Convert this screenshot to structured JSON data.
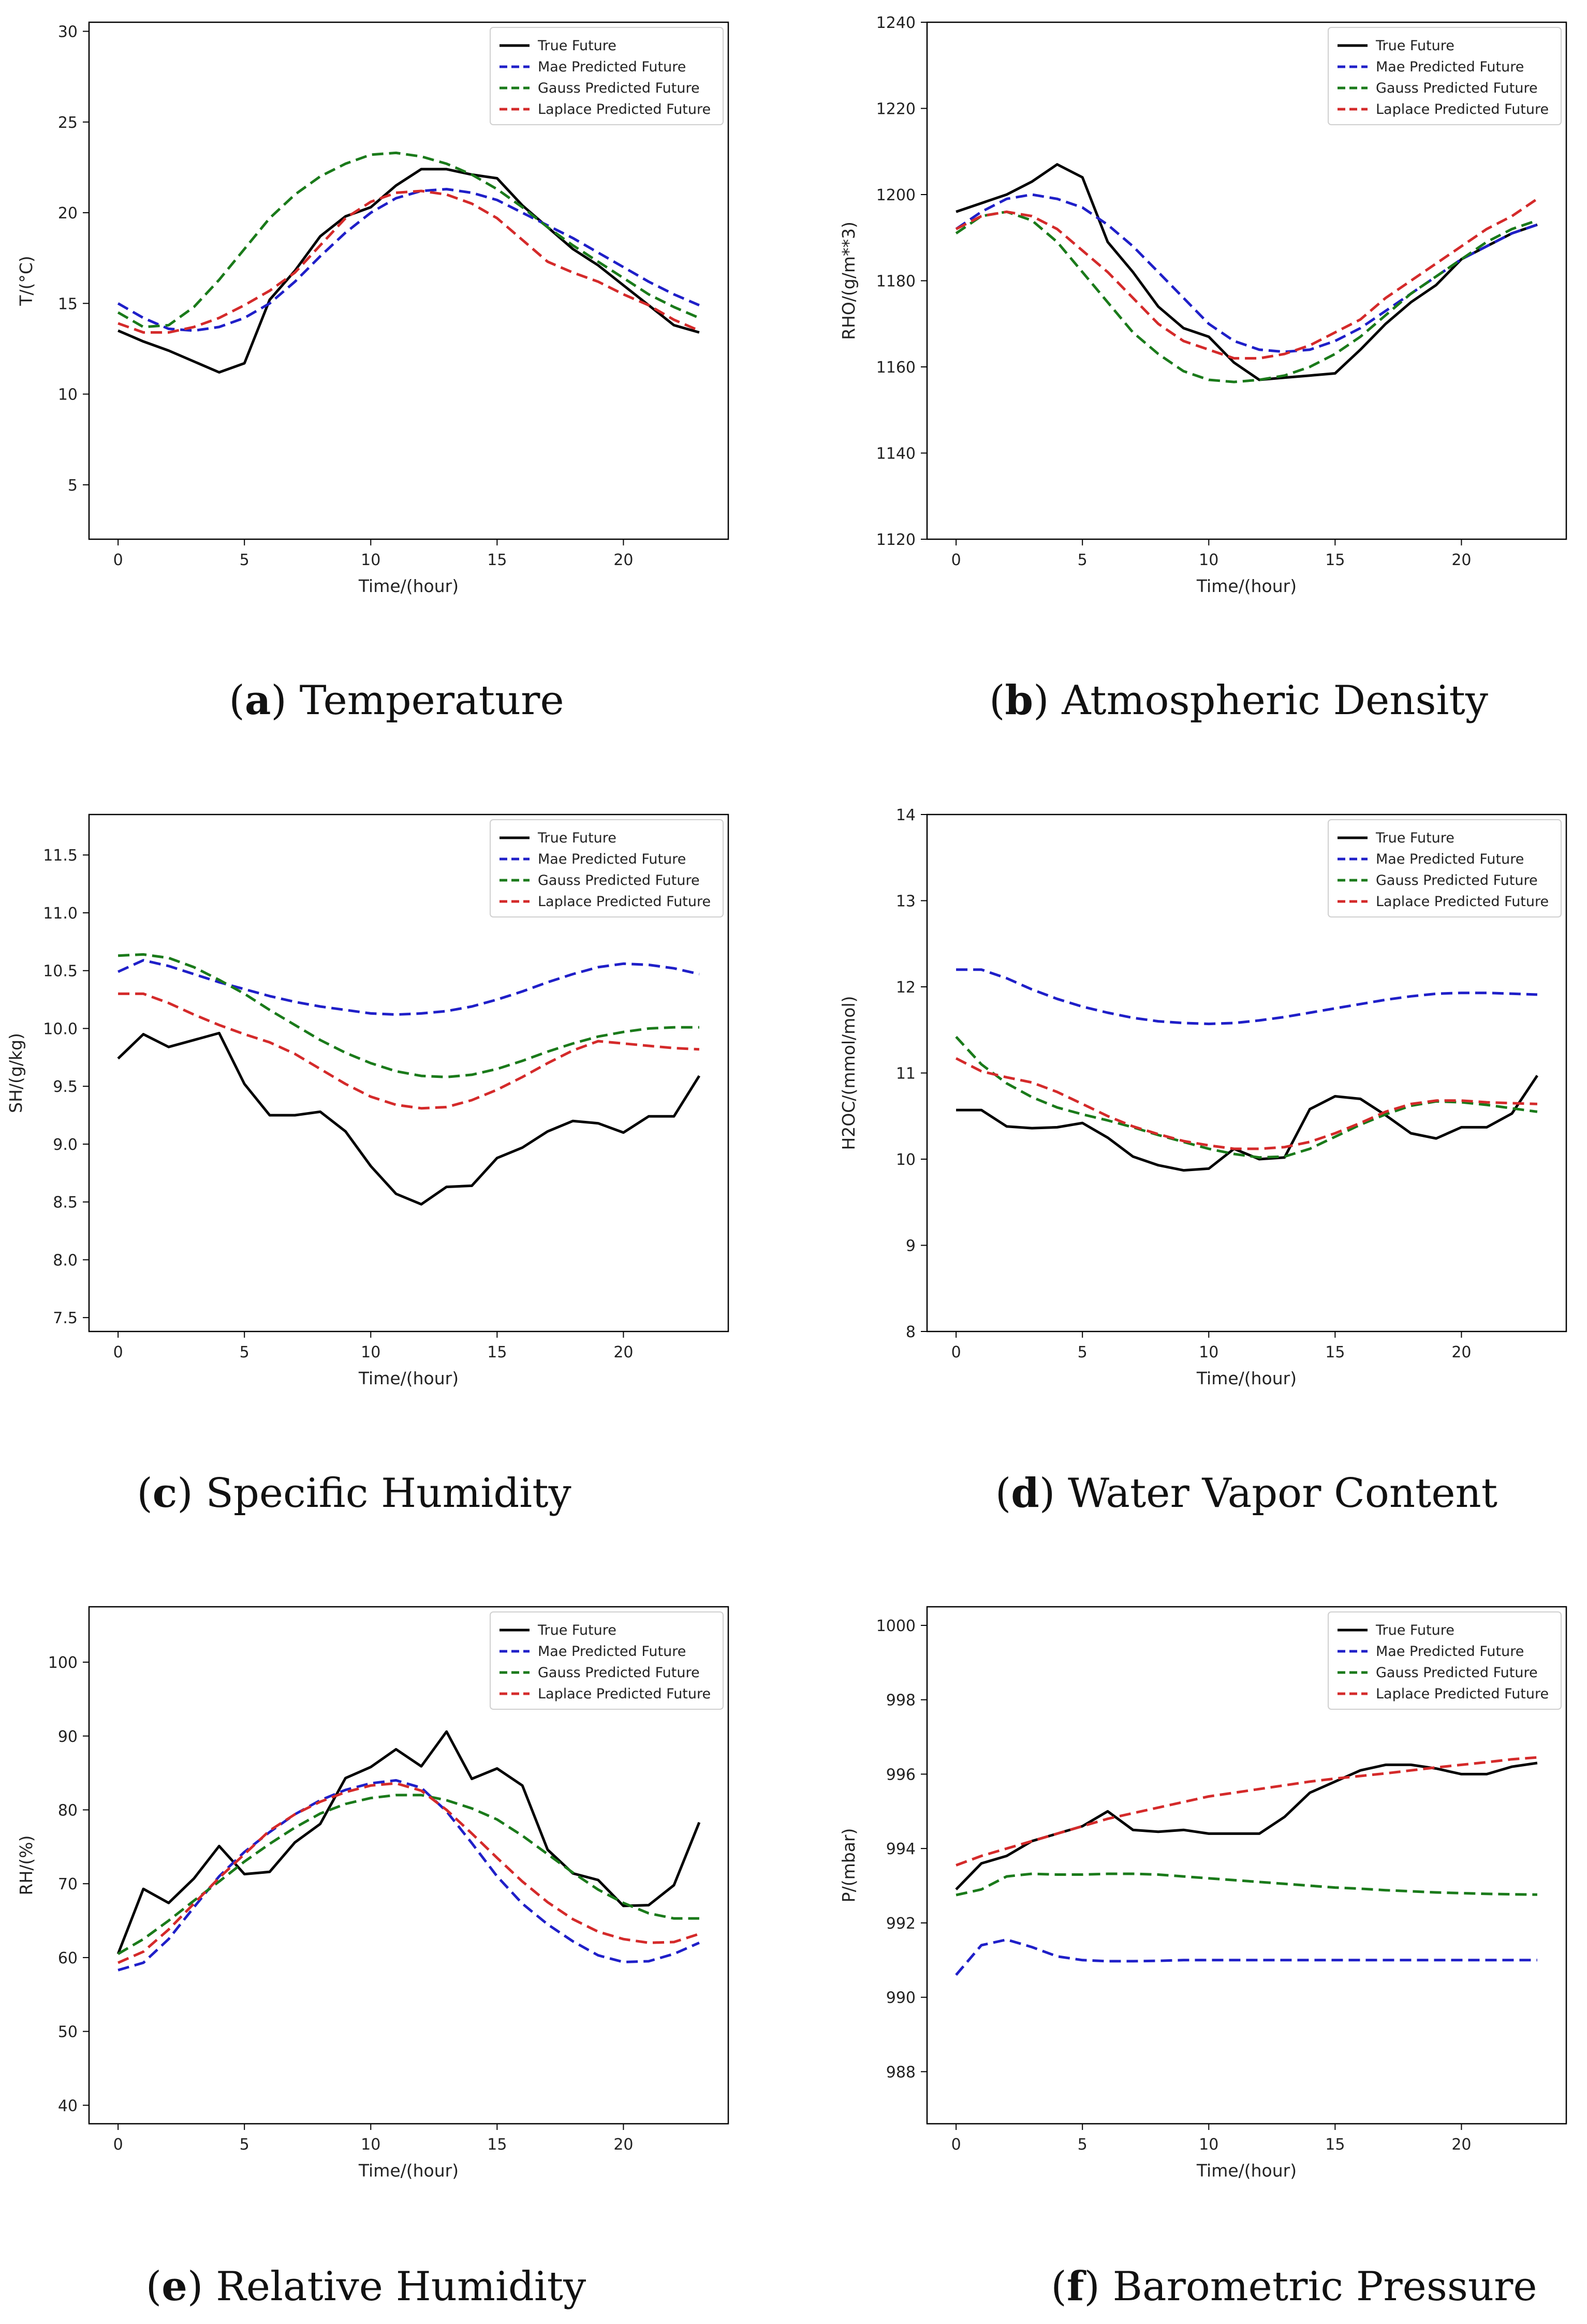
{
  "legend_labels": [
    "True Future",
    "Mae Predicted Future",
    "Gauss Predicted Future",
    "Laplace Predicted Future"
  ],
  "series_colors": [
    "#000000",
    "#1f1fc8",
    "#1a7a1a",
    "#d42a2a"
  ],
  "xlabel": "Time/(hour)",
  "chart_data": [
    {
      "type": "line",
      "panel": "a",
      "caption_letter": "a",
      "caption_text": "Temperature",
      "ylabel": "T/(°C)",
      "xlabel": "Time/(hour)",
      "xlim": [
        -1.15,
        24.15
      ],
      "ylim": [
        2,
        30.5
      ],
      "xticks": [
        0,
        5,
        10,
        15,
        20
      ],
      "yticks": [
        5,
        10,
        15,
        20,
        25,
        30
      ],
      "x": [
        0,
        1,
        2,
        3,
        4,
        5,
        6,
        7,
        8,
        9,
        10,
        11,
        12,
        13,
        14,
        15,
        16,
        17,
        18,
        19,
        20,
        21,
        22,
        23
      ],
      "series": [
        {
          "name": "True Future",
          "values": [
            13.5,
            12.9,
            12.4,
            11.8,
            11.2,
            11.7,
            15.2,
            16.8,
            18.7,
            19.8,
            20.3,
            21.5,
            22.4,
            22.4,
            22.1,
            21.9,
            20.4,
            19.2,
            18.0,
            17.1,
            16.0,
            14.9,
            13.8,
            13.4
          ]
        },
        {
          "name": "Mae Predicted Future",
          "values": [
            15.0,
            14.2,
            13.6,
            13.5,
            13.7,
            14.2,
            15.0,
            16.2,
            17.6,
            18.9,
            20.0,
            20.8,
            21.2,
            21.3,
            21.1,
            20.7,
            20.0,
            19.3,
            18.6,
            17.8,
            17.0,
            16.2,
            15.5,
            14.9
          ]
        },
        {
          "name": "Gauss Predicted Future",
          "values": [
            14.5,
            13.7,
            13.8,
            14.8,
            16.3,
            18.0,
            19.7,
            21.0,
            22.0,
            22.7,
            23.2,
            23.3,
            23.1,
            22.7,
            22.1,
            21.3,
            20.3,
            19.2,
            18.2,
            17.3,
            16.4,
            15.5,
            14.8,
            14.2
          ]
        },
        {
          "name": "Laplace Predicted Future",
          "values": [
            13.9,
            13.4,
            13.4,
            13.7,
            14.2,
            14.9,
            15.7,
            16.7,
            18.2,
            19.7,
            20.6,
            21.1,
            21.2,
            21.0,
            20.5,
            19.7,
            18.5,
            17.3,
            16.7,
            16.2,
            15.5,
            14.9,
            14.1,
            13.5
          ]
        }
      ]
    },
    {
      "type": "line",
      "panel": "b",
      "caption_letter": "b",
      "caption_text": "Atmospheric Density",
      "ylabel": "RHO/(g/m**3)",
      "xlabel": "Time/(hour)",
      "xlim": [
        -1.15,
        24.15
      ],
      "ylim": [
        1120,
        1240
      ],
      "xticks": [
        0,
        5,
        10,
        15,
        20
      ],
      "yticks": [
        1120,
        1140,
        1160,
        1180,
        1200,
        1220,
        1240
      ],
      "x": [
        0,
        1,
        2,
        3,
        4,
        5,
        6,
        7,
        8,
        9,
        10,
        11,
        12,
        13,
        14,
        15,
        16,
        17,
        18,
        19,
        20,
        21,
        22,
        23
      ],
      "series": [
        {
          "name": "True Future",
          "values": [
            1196,
            1198,
            1200,
            1203,
            1207,
            1204,
            1189,
            1182,
            1174,
            1169,
            1167,
            1161,
            1157,
            1157.5,
            1158,
            1158.5,
            1164,
            1170,
            1175,
            1179,
            1185,
            1188,
            1191,
            1193
          ]
        },
        {
          "name": "Mae Predicted Future",
          "values": [
            1192,
            1196,
            1199,
            1200,
            1199,
            1197,
            1193,
            1188,
            1182,
            1176,
            1170,
            1166,
            1164,
            1163.5,
            1164,
            1166,
            1169,
            1173,
            1177,
            1181,
            1185,
            1188,
            1191,
            1193
          ]
        },
        {
          "name": "Gauss Predicted Future",
          "values": [
            1191,
            1195,
            1196,
            1194,
            1189,
            1182,
            1175,
            1168,
            1163,
            1159,
            1157,
            1156.5,
            1157,
            1158,
            1160,
            1163,
            1167,
            1172,
            1177,
            1181,
            1185,
            1189,
            1192,
            1194
          ]
        },
        {
          "name": "Laplace Predicted Future",
          "values": [
            1192,
            1195,
            1196,
            1195,
            1192,
            1187,
            1182,
            1176,
            1170,
            1166,
            1164,
            1162,
            1162,
            1163,
            1165,
            1168,
            1171,
            1176,
            1180,
            1184,
            1188,
            1192,
            1195,
            1199
          ]
        }
      ]
    },
    {
      "type": "line",
      "panel": "c",
      "caption_letter": "c",
      "caption_text": "Specific Humidity",
      "ylabel": "SH/(g/kg)",
      "xlabel": "Time/(hour)",
      "xlim": [
        -1.15,
        24.15
      ],
      "ylim": [
        7.38,
        11.85
      ],
      "xticks": [
        0,
        5,
        10,
        15,
        20
      ],
      "yticks": [
        7.5,
        8.0,
        8.5,
        9.0,
        9.5,
        10.0,
        10.5,
        11.0,
        11.5
      ],
      "ytick_labels": [
        "7.5",
        "8.0",
        "8.5",
        "9.0",
        "9.5",
        "10.0",
        "10.5",
        "11.0",
        "11.5"
      ],
      "x": [
        0,
        1,
        2,
        3,
        4,
        5,
        6,
        7,
        8,
        9,
        10,
        11,
        12,
        13,
        14,
        15,
        16,
        17,
        18,
        19,
        20,
        21,
        22,
        23
      ],
      "series": [
        {
          "name": "True Future",
          "values": [
            9.74,
            9.95,
            9.84,
            9.9,
            9.96,
            9.52,
            9.25,
            9.25,
            9.28,
            9.11,
            8.81,
            8.57,
            8.48,
            8.63,
            8.64,
            8.88,
            8.97,
            9.11,
            9.2,
            9.18,
            9.1,
            9.24,
            9.24,
            9.59
          ]
        },
        {
          "name": "Mae Predicted Future",
          "values": [
            10.49,
            10.59,
            10.54,
            10.47,
            10.4,
            10.34,
            10.28,
            10.23,
            10.19,
            10.16,
            10.13,
            10.12,
            10.13,
            10.15,
            10.19,
            10.25,
            10.32,
            10.4,
            10.47,
            10.53,
            10.56,
            10.55,
            10.52,
            10.47
          ]
        },
        {
          "name": "Gauss Predicted Future",
          "values": [
            10.63,
            10.64,
            10.61,
            10.53,
            10.42,
            10.3,
            10.16,
            10.03,
            9.9,
            9.79,
            9.7,
            9.63,
            9.59,
            9.58,
            9.6,
            9.65,
            9.72,
            9.8,
            9.87,
            9.93,
            9.97,
            10.0,
            10.01,
            10.01
          ]
        },
        {
          "name": "Laplace Predicted Future",
          "values": [
            10.3,
            10.3,
            10.22,
            10.12,
            10.03,
            9.95,
            9.88,
            9.78,
            9.65,
            9.52,
            9.41,
            9.34,
            9.31,
            9.32,
            9.38,
            9.47,
            9.58,
            9.7,
            9.81,
            9.89,
            9.87,
            9.85,
            9.83,
            9.82
          ]
        }
      ]
    },
    {
      "type": "line",
      "panel": "d",
      "caption_letter": "d",
      "caption_text": "Water Vapor Content",
      "ylabel": "H2OC/(mmol/mol)",
      "xlabel": "Time/(hour)",
      "xlim": [
        -1.15,
        24.15
      ],
      "ylim": [
        8,
        14
      ],
      "xticks": [
        0,
        5,
        10,
        15,
        20
      ],
      "yticks": [
        8,
        9,
        10,
        11,
        12,
        13,
        14
      ],
      "x": [
        0,
        1,
        2,
        3,
        4,
        5,
        6,
        7,
        8,
        9,
        10,
        11,
        12,
        13,
        14,
        15,
        16,
        17,
        18,
        19,
        20,
        21,
        22,
        23
      ],
      "series": [
        {
          "name": "True Future",
          "values": [
            10.57,
            10.57,
            10.38,
            10.36,
            10.37,
            10.42,
            10.25,
            10.03,
            9.93,
            9.87,
            9.89,
            10.12,
            10.0,
            10.02,
            10.58,
            10.73,
            10.7,
            10.51,
            10.3,
            10.24,
            10.37,
            10.37,
            10.53,
            10.97
          ]
        },
        {
          "name": "Mae Predicted Future",
          "values": [
            12.2,
            12.2,
            12.1,
            11.97,
            11.86,
            11.77,
            11.7,
            11.64,
            11.6,
            11.58,
            11.57,
            11.58,
            11.61,
            11.65,
            11.7,
            11.75,
            11.8,
            11.85,
            11.89,
            11.92,
            11.93,
            11.93,
            11.92,
            11.91
          ]
        },
        {
          "name": "Gauss Predicted Future",
          "values": [
            11.42,
            11.1,
            10.88,
            10.72,
            10.6,
            10.52,
            10.45,
            10.37,
            10.28,
            10.2,
            10.12,
            10.06,
            10.02,
            10.03,
            10.12,
            10.26,
            10.4,
            10.52,
            10.62,
            10.67,
            10.66,
            10.63,
            10.59,
            10.55
          ]
        },
        {
          "name": "Laplace Predicted Future",
          "values": [
            11.17,
            11.02,
            10.95,
            10.89,
            10.78,
            10.64,
            10.5,
            10.38,
            10.29,
            10.21,
            10.16,
            10.12,
            10.12,
            10.14,
            10.2,
            10.3,
            10.42,
            10.55,
            10.64,
            10.68,
            10.68,
            10.66,
            10.65,
            10.64
          ]
        }
      ]
    },
    {
      "type": "line",
      "panel": "e",
      "caption_letter": "e",
      "caption_text": "Relative Humidity",
      "ylabel": "RH/(%)",
      "xlabel": "Time/(hour)",
      "xlim": [
        -1.15,
        24.15
      ],
      "ylim": [
        37.5,
        107.5
      ],
      "xticks": [
        0,
        5,
        10,
        15,
        20
      ],
      "yticks": [
        40,
        50,
        60,
        70,
        80,
        90,
        100
      ],
      "x": [
        0,
        1,
        2,
        3,
        4,
        5,
        6,
        7,
        8,
        9,
        10,
        11,
        12,
        13,
        14,
        15,
        16,
        17,
        18,
        19,
        20,
        21,
        22,
        23
      ],
      "series": [
        {
          "name": "True Future",
          "values": [
            60.5,
            69.3,
            67.4,
            70.7,
            75.1,
            71.3,
            71.6,
            75.6,
            78.1,
            84.3,
            85.8,
            88.2,
            85.9,
            90.6,
            84.2,
            85.6,
            83.3,
            74.6,
            71.4,
            70.5,
            67.0,
            67.1,
            69.8,
            78.3
          ]
        },
        {
          "name": "Mae Predicted Future",
          "values": [
            58.3,
            59.3,
            62.5,
            66.8,
            71.0,
            74.3,
            77.0,
            79.4,
            81.3,
            82.7,
            83.6,
            84.0,
            83.0,
            79.8,
            75.5,
            71.0,
            67.3,
            64.5,
            62.2,
            60.3,
            59.4,
            59.5,
            60.5,
            62.0
          ]
        },
        {
          "name": "Gauss Predicted Future",
          "values": [
            60.5,
            62.5,
            65.0,
            67.7,
            70.3,
            73.0,
            75.4,
            77.6,
            79.5,
            80.8,
            81.6,
            82.0,
            82.0,
            81.3,
            80.2,
            78.7,
            76.5,
            74.0,
            71.5,
            69.2,
            67.4,
            66.0,
            65.3,
            65.3
          ]
        },
        {
          "name": "Laplace Predicted Future",
          "values": [
            59.3,
            60.8,
            63.8,
            67.3,
            70.8,
            74.0,
            77.2,
            79.4,
            81.1,
            82.4,
            83.3,
            83.6,
            82.6,
            80.0,
            76.8,
            73.5,
            70.3,
            67.5,
            65.2,
            63.5,
            62.5,
            62.0,
            62.1,
            63.2
          ]
        }
      ]
    },
    {
      "type": "line",
      "panel": "f",
      "caption_letter": "f",
      "caption_text": "Barometric Pressure",
      "ylabel": "P/(mbar)",
      "xlabel": "Time/(hour)",
      "xlim": [
        -1.15,
        24.15
      ],
      "ylim": [
        986.6,
        1000.5
      ],
      "xticks": [
        0,
        5,
        10,
        15,
        20
      ],
      "yticks": [
        988,
        990,
        992,
        994,
        996,
        998,
        1000
      ],
      "x": [
        0,
        1,
        2,
        3,
        4,
        5,
        6,
        7,
        8,
        9,
        10,
        11,
        12,
        13,
        14,
        15,
        16,
        17,
        18,
        19,
        20,
        21,
        22,
        23
      ],
      "series": [
        {
          "name": "True Future",
          "values": [
            992.9,
            993.6,
            993.8,
            994.2,
            994.4,
            994.6,
            995.0,
            994.5,
            994.45,
            994.5,
            994.4,
            994.4,
            994.4,
            994.85,
            995.5,
            995.8,
            996.1,
            996.25,
            996.25,
            996.15,
            996.0,
            996.0,
            996.2,
            996.3
          ]
        },
        {
          "name": "Mae Predicted Future",
          "values": [
            990.6,
            991.4,
            991.55,
            991.35,
            991.1,
            991.0,
            990.97,
            990.97,
            990.98,
            991.0,
            991.0,
            991.0,
            991.0,
            991.0,
            991.0,
            991.0,
            991.0,
            991.0,
            991.0,
            991.0,
            991.0,
            991.0,
            991.0,
            991.0
          ]
        },
        {
          "name": "Gauss Predicted Future",
          "values": [
            992.75,
            992.9,
            993.25,
            993.32,
            993.3,
            993.3,
            993.32,
            993.32,
            993.3,
            993.25,
            993.2,
            993.15,
            993.1,
            993.05,
            993.0,
            992.95,
            992.92,
            992.88,
            992.85,
            992.82,
            992.8,
            992.78,
            992.77,
            992.76
          ]
        },
        {
          "name": "Laplace Predicted Future",
          "values": [
            993.55,
            993.8,
            994.0,
            994.2,
            994.4,
            994.6,
            994.8,
            994.95,
            995.1,
            995.25,
            995.4,
            995.5,
            995.6,
            995.7,
            995.8,
            995.88,
            995.95,
            996.02,
            996.1,
            996.18,
            996.25,
            996.32,
            996.4,
            996.45
          ]
        }
      ]
    }
  ]
}
